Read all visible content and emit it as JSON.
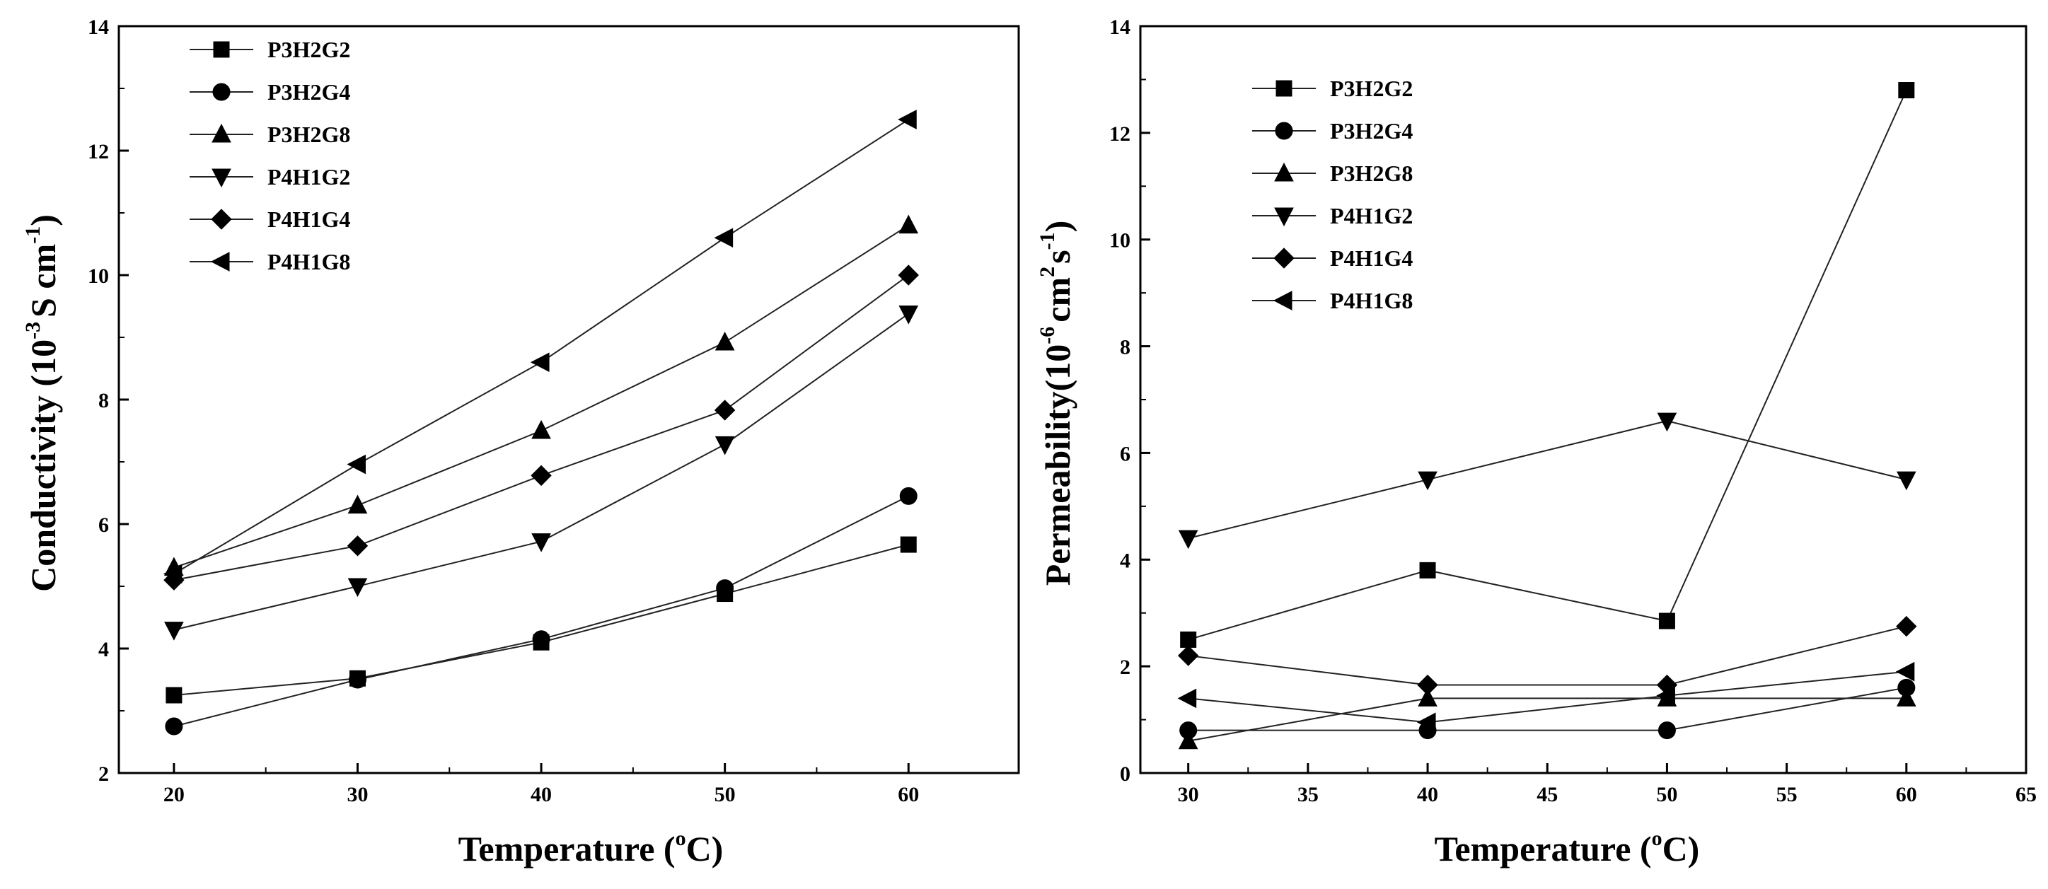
{
  "figure": {
    "title": ""
  },
  "chart_data": [
    {
      "type": "line",
      "title": "",
      "xlabel_main": "Temperature (",
      "xlabel_sup": "o",
      "xlabel_end": "C)",
      "ylabel_main": "Conductivity (10",
      "ylabel_sup1": "-3",
      "ylabel_mid": "S cm",
      "ylabel_sup2": "-1",
      "ylabel_end": ")",
      "xlim": [
        17,
        66
      ],
      "ylim": [
        2,
        14
      ],
      "xticks": [
        20,
        30,
        40,
        50,
        60
      ],
      "yticks": [
        2,
        4,
        6,
        8,
        10,
        12,
        14
      ],
      "x": [
        20,
        30,
        40,
        50,
        60
      ],
      "legend_position": "top-left",
      "series": [
        {
          "name": "P3H2G2",
          "marker": "square",
          "values": [
            3.25,
            3.52,
            4.1,
            4.88,
            5.67
          ]
        },
        {
          "name": "P3H2G4",
          "marker": "circle",
          "values": [
            2.75,
            3.5,
            4.15,
            4.97,
            6.45
          ]
        },
        {
          "name": "P3H2G8",
          "marker": "triangle-up",
          "values": [
            5.3,
            6.3,
            7.5,
            8.92,
            10.8
          ]
        },
        {
          "name": "P4H1G2",
          "marker": "triangle-down",
          "values": [
            4.3,
            5.0,
            5.72,
            7.28,
            9.38
          ]
        },
        {
          "name": "P4H1G4",
          "marker": "diamond",
          "values": [
            5.1,
            5.65,
            6.78,
            7.83,
            10.0
          ]
        },
        {
          "name": "P4H1G8",
          "marker": "triangle-left",
          "values": [
            5.2,
            6.96,
            8.6,
            10.6,
            12.5
          ]
        }
      ]
    },
    {
      "type": "line",
      "title": "",
      "xlabel_main": "Temperature (",
      "xlabel_sup": "o",
      "xlabel_end": "C)",
      "ylabel_main": "Permeability(10",
      "ylabel_sup1": "-6",
      "ylabel_mid": "cm",
      "ylabel_sup2": "2",
      "ylabel_mid2": "s",
      "ylabel_sup3": "-1",
      "ylabel_end": ")",
      "xlim": [
        28,
        65
      ],
      "ylim": [
        0,
        14
      ],
      "xticks": [
        30,
        35,
        40,
        45,
        50,
        55,
        60,
        65
      ],
      "yticks": [
        0,
        2,
        4,
        6,
        8,
        10,
        12,
        14
      ],
      "x": [
        30,
        40,
        50,
        60
      ],
      "legend_position": "top-left",
      "series": [
        {
          "name": "P3H2G2",
          "marker": "square",
          "values": [
            2.5,
            3.8,
            2.85,
            12.8
          ]
        },
        {
          "name": "P3H2G4",
          "marker": "circle",
          "values": [
            0.8,
            0.8,
            0.8,
            1.6
          ]
        },
        {
          "name": "P3H2G8",
          "marker": "triangle-up",
          "values": [
            0.6,
            1.4,
            1.4,
            1.4
          ]
        },
        {
          "name": "P4H1G2",
          "marker": "triangle-down",
          "values": [
            4.4,
            5.5,
            6.6,
            5.5
          ]
        },
        {
          "name": "P4H1G4",
          "marker": "diamond",
          "values": [
            2.2,
            1.65,
            1.65,
            2.75
          ]
        },
        {
          "name": "P4H1G8",
          "marker": "triangle-left",
          "values": [
            1.4,
            0.95,
            1.45,
            1.9
          ]
        }
      ]
    }
  ]
}
